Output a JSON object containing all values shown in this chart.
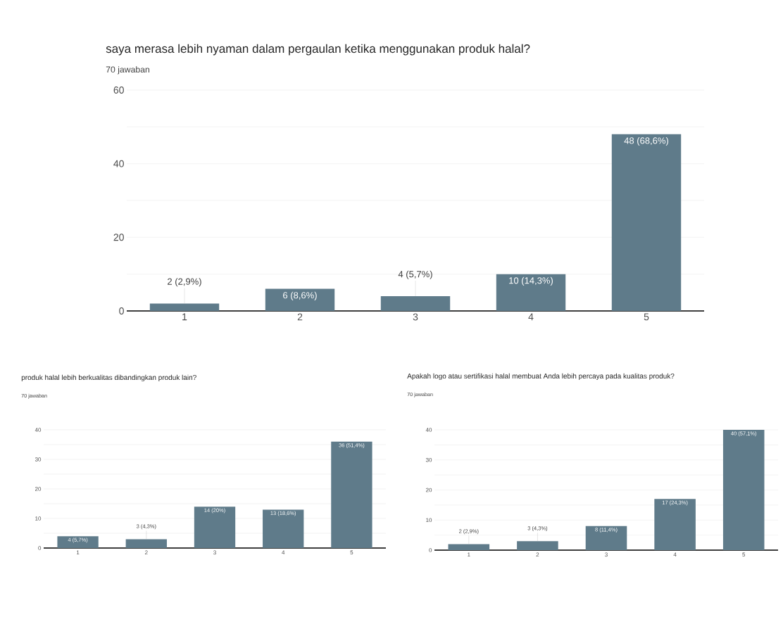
{
  "chart_data": [
    {
      "type": "bar",
      "title": "saya merasa lebih nyaman dalam pergaulan ketika menggunakan produk halal?",
      "subtitle": "70 jawaban",
      "categories": [
        "1",
        "2",
        "3",
        "4",
        "5"
      ],
      "values": [
        2,
        6,
        4,
        10,
        48
      ],
      "value_labels": [
        "2 (2,9%)",
        "6 (8,6%)",
        "4 (5,7%)",
        "10 (14,3%)",
        "48 (68,6%)"
      ],
      "color": "#5f7b8a",
      "ylim": [
        0,
        60
      ],
      "yticks": [
        0,
        {
          "value": 10,
          "label": null
        },
        20,
        {
          "value": 30,
          "label": null
        },
        40,
        {
          "value": 50,
          "label": null
        },
        60
      ],
      "grid": "y"
    },
    {
      "type": "bar",
      "title": "produk halal lebih berkualitas dibandingkan produk lain?",
      "subtitle": "70 jawaban",
      "categories": [
        "1",
        "2",
        "3",
        "4",
        "5"
      ],
      "values": [
        4,
        3,
        14,
        13,
        36
      ],
      "value_labels": [
        "4 (5,7%)",
        "3 (4,3%)",
        "14 (20%)",
        "13 (18,6%)",
        "36 (51,4%)"
      ],
      "color": "#5f7b8a",
      "ylim": [
        0,
        40
      ],
      "yticks": [
        0,
        {
          "value": 5,
          "label": null
        },
        10,
        {
          "value": 15,
          "label": null
        },
        20,
        {
          "value": 25,
          "label": null
        },
        30,
        {
          "value": 35,
          "label": null
        },
        40
      ],
      "grid": "y"
    },
    {
      "type": "bar",
      "title": "Apakah logo atau sertifikasi halal membuat Anda lebih percaya pada kualitas produk?",
      "subtitle": "70 jawaban",
      "categories": [
        "1",
        "2",
        "3",
        "4",
        "5"
      ],
      "values": [
        2,
        3,
        8,
        17,
        40
      ],
      "value_labels": [
        "2 (2,9%)",
        "3 (4,3%)",
        "8 (11,4%)",
        "17 (24,3%)",
        "40 (57,1%)"
      ],
      "color": "#5f7b8a",
      "ylim": [
        0,
        40
      ],
      "yticks": [
        0,
        {
          "value": 5,
          "label": null
        },
        10,
        {
          "value": 15,
          "label": null
        },
        20,
        {
          "value": 25,
          "label": null
        },
        30,
        {
          "value": 35,
          "label": null
        },
        40
      ],
      "grid": "y"
    }
  ]
}
